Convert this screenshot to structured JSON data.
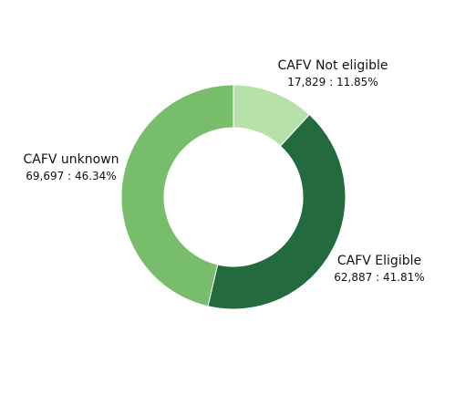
{
  "chart_data": {
    "type": "pie",
    "subtype": "donut",
    "slices": [
      {
        "label": "CAFV Not eligible",
        "value": 17829,
        "value_text": "17,829 : 11.85%",
        "percent": 11.85,
        "color": "#b7e1a8"
      },
      {
        "label": "CAFV Eligible",
        "value": 62887,
        "value_text": "62,887 : 41.81%",
        "percent": 41.81,
        "color": "#236b3e"
      },
      {
        "label": "CAFV unknown",
        "value": 69697,
        "value_text": "69,697 : 46.34%",
        "percent": 46.34,
        "color": "#77bd6b"
      }
    ],
    "start_angle": "12 o'clock",
    "direction": "clockwise"
  }
}
